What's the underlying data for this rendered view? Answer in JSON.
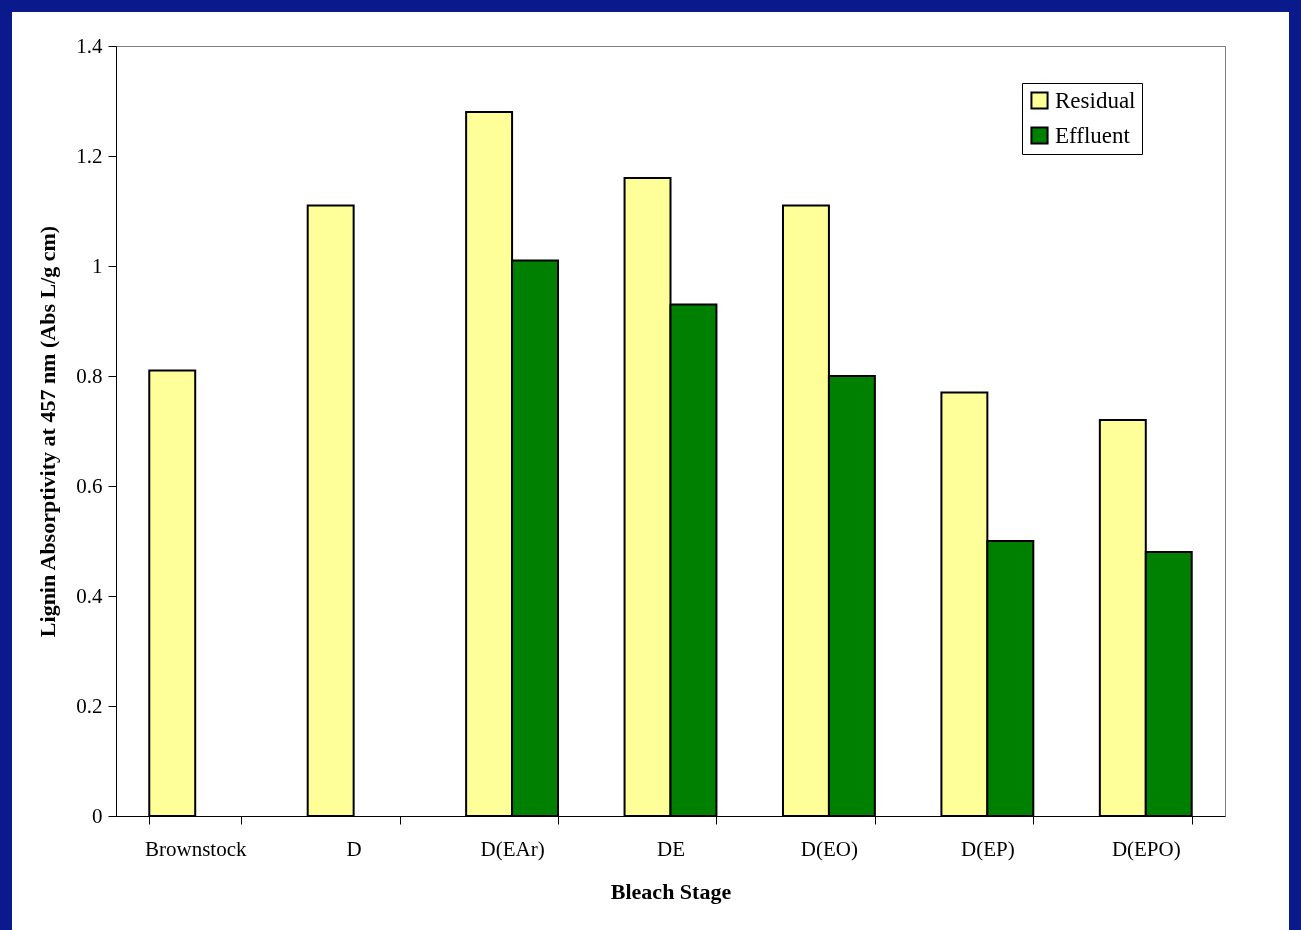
{
  "chart_data": {
    "type": "bar",
    "xlabel": "Bleach Stage",
    "ylabel": "Lignin Absorptivity at 457 nm (Abs L/g cm)",
    "categories": [
      "Brownstock",
      "D",
      "D(EAr)",
      "DE",
      "D(EO)",
      "D(EP)",
      "D(EPO)"
    ],
    "series": [
      {
        "name": "Residual",
        "color": "#ffff99",
        "values": [
          0.81,
          1.11,
          1.28,
          1.16,
          1.11,
          0.77,
          0.72
        ]
      },
      {
        "name": "Effluent",
        "color": "#008000",
        "values": [
          null,
          null,
          1.01,
          0.93,
          0.8,
          0.5,
          0.48
        ]
      }
    ],
    "ylim": [
      0,
      1.4
    ],
    "yticks": [
      0,
      0.2,
      0.4,
      0.6,
      0.8,
      1,
      1.2,
      1.4
    ],
    "grid": false,
    "legend": "top right"
  }
}
